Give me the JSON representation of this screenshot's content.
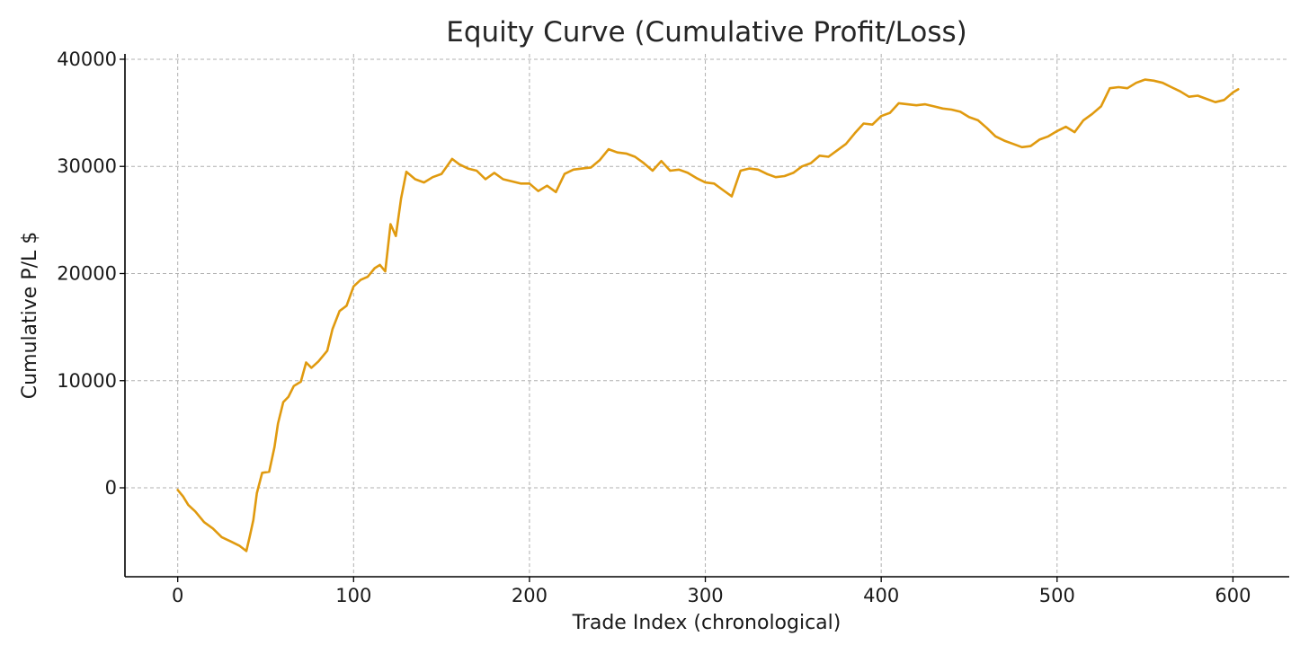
{
  "chart_data": {
    "type": "line",
    "title": "Equity Curve (Cumulative Profit/Loss)",
    "xlabel": "Trade Index (chronological)",
    "ylabel": "Cumulative P/L $",
    "xlim": [
      -30,
      632
    ],
    "ylim": [
      -8300,
      40500
    ],
    "x_ticks": [
      0,
      100,
      200,
      300,
      400,
      500,
      600
    ],
    "y_ticks": [
      0,
      10000,
      20000,
      30000,
      40000
    ],
    "grid": true,
    "line_color": "#e09a0f",
    "series": [
      {
        "x": [
          0,
          3,
          6,
          10,
          15,
          20,
          25,
          30,
          35,
          39,
          41,
          43,
          45,
          48,
          52,
          55,
          57,
          60,
          63,
          66,
          70,
          73,
          76,
          80,
          85,
          88,
          92,
          96,
          100,
          104,
          108,
          112,
          115,
          118,
          121,
          124,
          127,
          130,
          135,
          140,
          145,
          150,
          156,
          160,
          165,
          170,
          175,
          180,
          185,
          190,
          195,
          200,
          205,
          210,
          215,
          220,
          225,
          230,
          235,
          240,
          245,
          250,
          255,
          260,
          265,
          270,
          275,
          280,
          285,
          290,
          295,
          300,
          305,
          310,
          315,
          320,
          325,
          330,
          335,
          340,
          345,
          350,
          355,
          360,
          365,
          370,
          375,
          380,
          385,
          390,
          395,
          400,
          405,
          410,
          415,
          420,
          425,
          430,
          435,
          440,
          445,
          450,
          455,
          460,
          465,
          470,
          475,
          480,
          485,
          490,
          495,
          500,
          505,
          510,
          515,
          520,
          525,
          530,
          535,
          540,
          545,
          550,
          555,
          560,
          565,
          570,
          575,
          580,
          585,
          590,
          595,
          600,
          603
        ],
        "y": [
          -200,
          -800,
          -1600,
          -2200,
          -3200,
          -3800,
          -4600,
          -5000,
          -5400,
          -5900,
          -4500,
          -3000,
          -500,
          1400,
          1500,
          3800,
          6000,
          8000,
          8500,
          9500,
          9900,
          11700,
          11200,
          11800,
          12800,
          14800,
          16500,
          17000,
          18800,
          19400,
          19700,
          20500,
          20800,
          20200,
          24600,
          23500,
          27000,
          29500,
          28800,
          28500,
          29000,
          29300,
          30700,
          30200,
          29800,
          29600,
          28800,
          29400,
          28800,
          28600,
          28400,
          28400,
          27700,
          28200,
          27600,
          29300,
          29700,
          29800,
          29900,
          30600,
          31600,
          31300,
          31200,
          30900,
          30300,
          29600,
          30500,
          29600,
          29700,
          29400,
          28900,
          28500,
          28400,
          27800,
          27200,
          29600,
          29800,
          29700,
          29300,
          29000,
          29100,
          29400,
          30000,
          30300,
          31000,
          30900,
          31500,
          32100,
          33100,
          34000,
          33900,
          34700,
          35000,
          35900,
          35800,
          35700,
          35800,
          35600,
          35400,
          35300,
          35100,
          34600,
          34300,
          33600,
          32800,
          32400,
          32100,
          31800,
          31900,
          32500,
          32800,
          33300,
          33700,
          33200,
          34300,
          34900,
          35600,
          37300,
          37400,
          37300,
          37800,
          38100,
          38000,
          37800,
          37400,
          37000,
          36500,
          36600,
          36300,
          36000,
          36200,
          36900,
          37200
        ]
      }
    ]
  }
}
